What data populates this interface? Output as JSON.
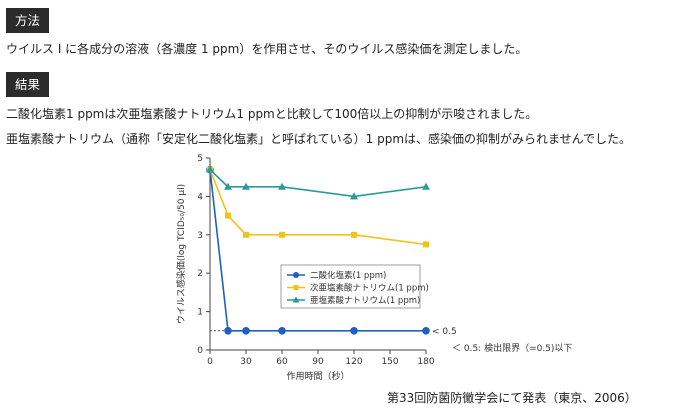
{
  "method": {
    "heading": "方法",
    "text": "ウイルス Ⅰ に各成分の溶液（各濃度 1 ppm）を作用させ、そのウイルス感染価を測定しました。"
  },
  "result": {
    "heading": "結果",
    "line1": "二酸化塩素1 ppmは次亜塩素酸ナトリウム1 ppmと比較して100倍以上の抑制が示唆されました。",
    "line2": "亜塩素酸ナトリウム（通称「安定化二酸化塩素」と呼ばれている）1 ppmは、感染価の抑制がみられませんでした。"
  },
  "citation": "第33回防菌防黴学会にて発表（東京、2006）",
  "chart_data": {
    "type": "line",
    "xlabel": "作用時間（秒）",
    "ylabel": "ウイルス感染価(log TCID₅₀/50 μl)",
    "x_ticks": [
      "0",
      "30",
      "60",
      "90",
      "120",
      "150",
      "180"
    ],
    "y_ticks": [
      "0",
      "1",
      "2",
      "3",
      "4",
      "5"
    ],
    "xlim": [
      0,
      180
    ],
    "ylim": [
      0,
      5
    ],
    "grid": false,
    "legend_position": "center-right",
    "threshold_label": "< 0.5",
    "threshold_value": 0.5,
    "footnote": "＜ 0.5: 検出限界（=0.5)以下",
    "series": [
      {
        "name": "二酸化塩素(1 ppm)",
        "color": "#1f5fbf",
        "marker": "circle",
        "x": [
          0,
          15,
          30,
          60,
          120,
          180
        ],
        "y": [
          4.7,
          0.5,
          0.5,
          0.5,
          0.5,
          0.5
        ]
      },
      {
        "name": "次亜塩素酸ナトリウム(1 ppm)",
        "color": "#f2c21a",
        "marker": "square",
        "x": [
          0,
          15,
          30,
          60,
          120,
          180
        ],
        "y": [
          4.7,
          3.5,
          3.0,
          3.0,
          3.0,
          2.75
        ]
      },
      {
        "name": "亜塩素酸ナトリウム(1 ppm)",
        "color": "#2a9a9a",
        "marker": "triangle",
        "x": [
          0,
          15,
          30,
          60,
          120,
          180
        ],
        "y": [
          4.7,
          4.25,
          4.25,
          4.25,
          4.0,
          4.25
        ]
      }
    ]
  }
}
